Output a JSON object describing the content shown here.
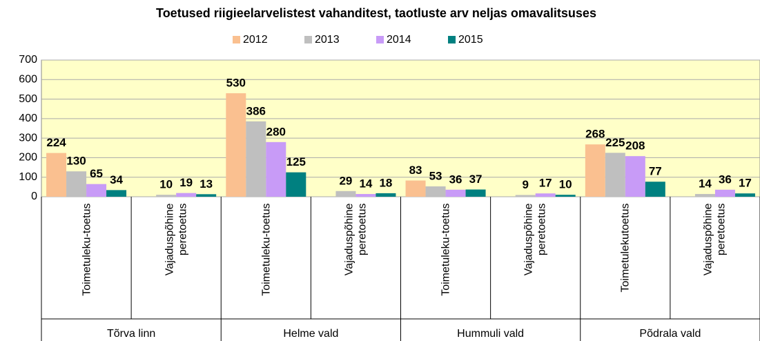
{
  "chart_data": {
    "type": "bar",
    "title": "Toetused riigieelarvelistest vahanditest, taotluste arv neljas omavalitsuses",
    "categories": [
      "Toimetuleku-toetus",
      "Vajaduspõhine peretoetus",
      "Toimetuleku-toetus",
      "Vajaduspõhine peretoetus",
      "Toimetuleku-toetus",
      "Vajaduspõhine peretoetus",
      "Toimetulekutoetus",
      "Vajaduspõhine peretoetus"
    ],
    "groups": [
      "Tõrva linn",
      "Helme vald",
      "Hummuli vald",
      "Põdrala vald"
    ],
    "series": [
      {
        "name": "2012",
        "color": "#fac090",
        "values": [
          224,
          null,
          530,
          null,
          83,
          null,
          268,
          null
        ]
      },
      {
        "name": "2013",
        "color": "#bfbfbf",
        "values": [
          130,
          10,
          386,
          29,
          53,
          9,
          225,
          14
        ]
      },
      {
        "name": "2014",
        "color": "#c89bf7",
        "values": [
          65,
          19,
          280,
          14,
          36,
          17,
          208,
          36
        ]
      },
      {
        "name": "2015",
        "color": "#008080",
        "values": [
          34,
          13,
          125,
          18,
          37,
          10,
          77,
          17
        ]
      }
    ],
    "ylim": [
      0,
      700
    ],
    "yticks": [
      0,
      100,
      200,
      300,
      400,
      500,
      600,
      700
    ],
    "grid": true,
    "legend": "top"
  }
}
